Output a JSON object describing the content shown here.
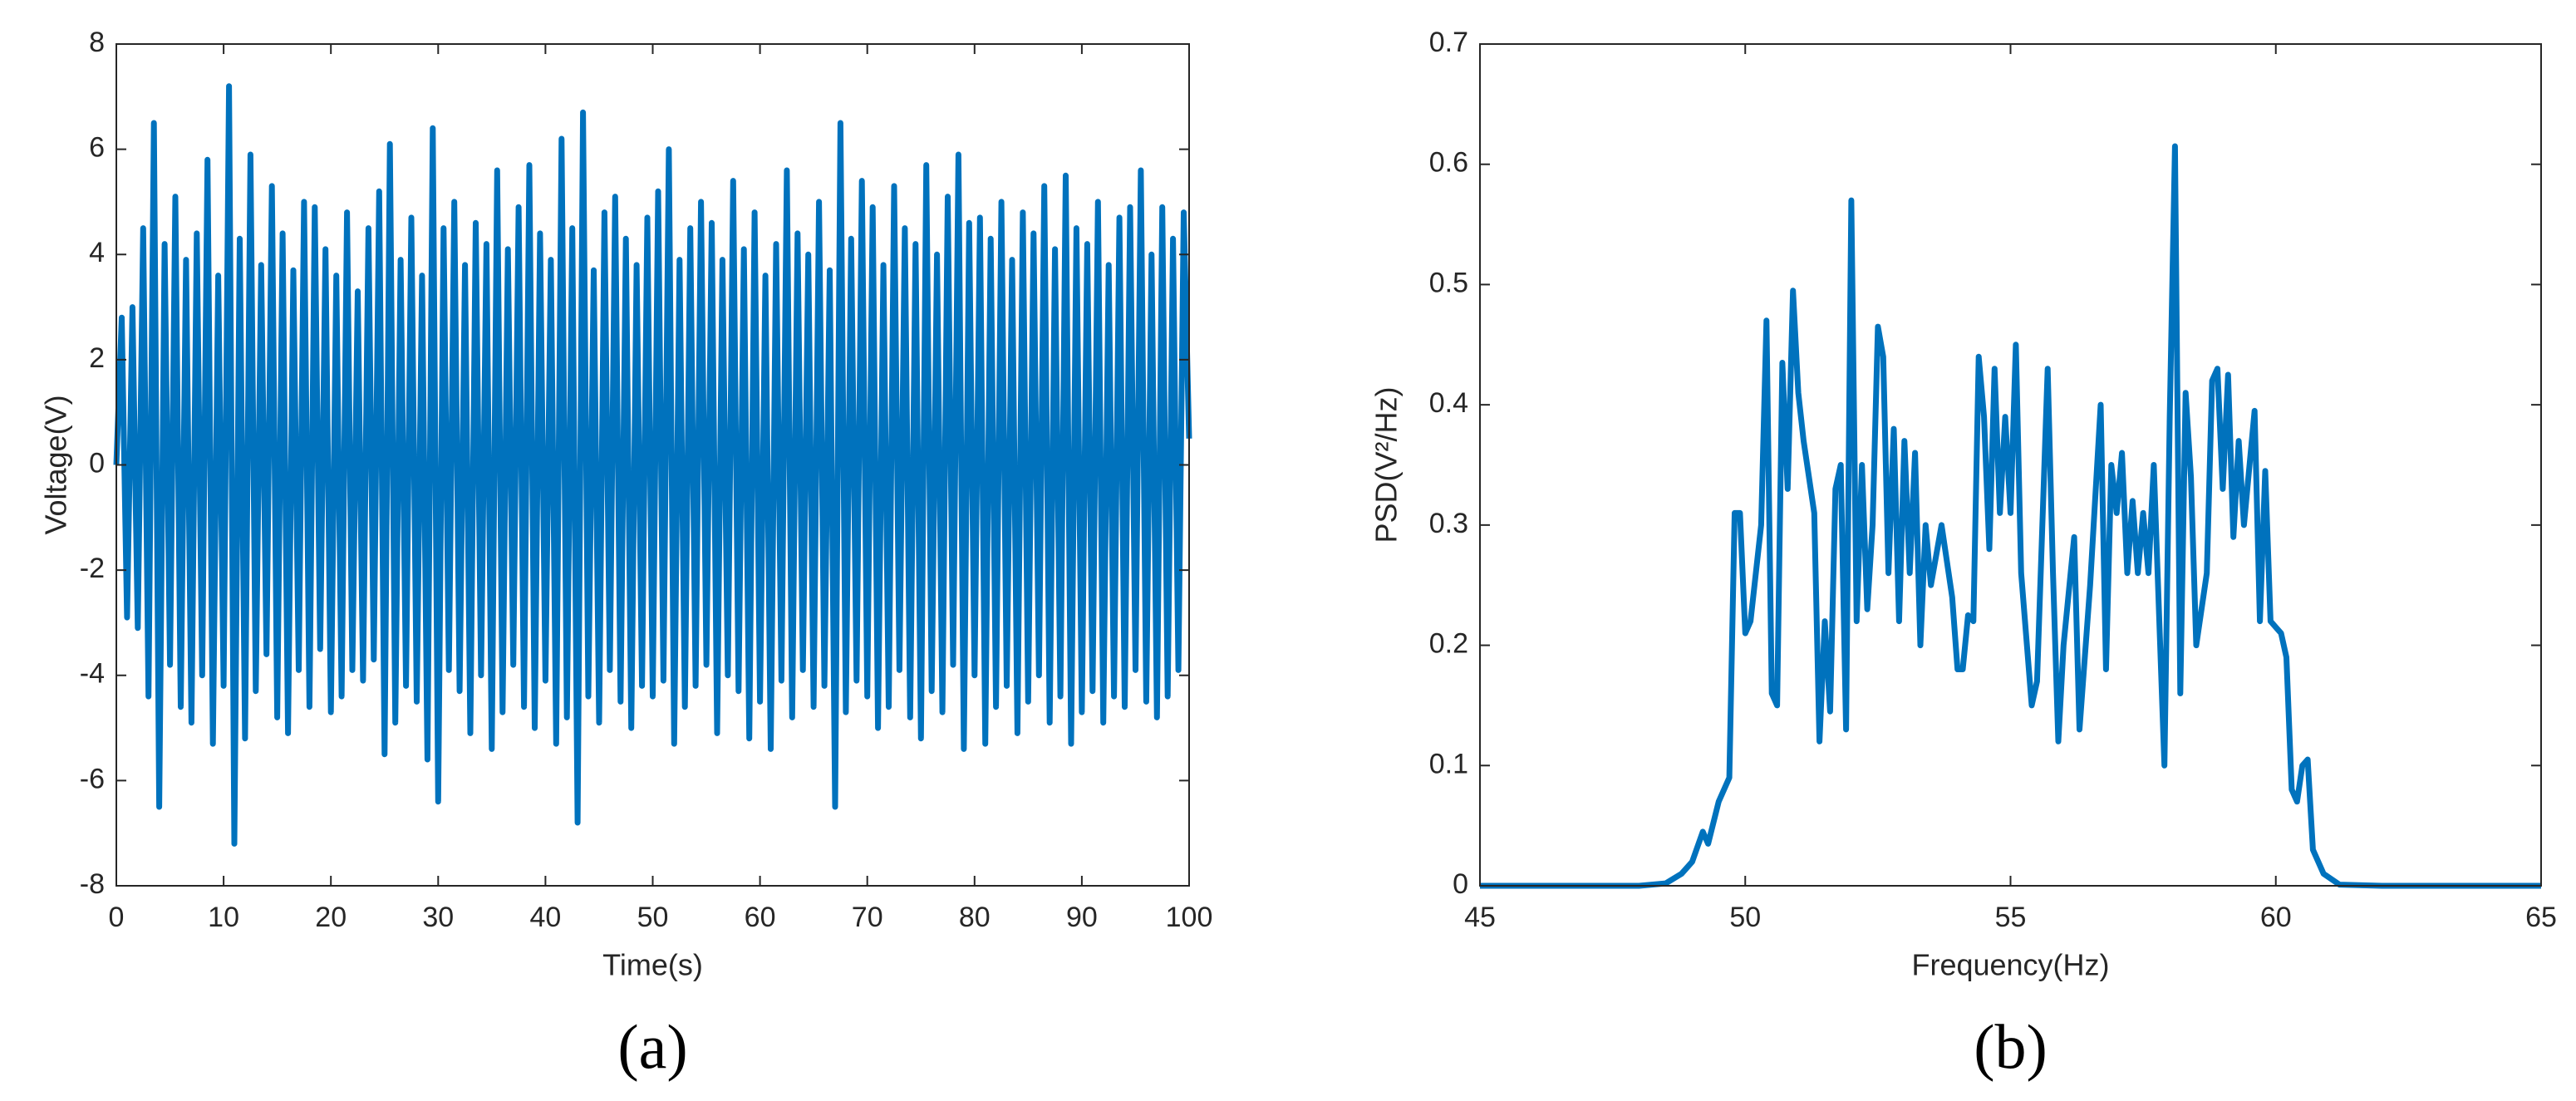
{
  "chart_data": [
    {
      "type": "line",
      "label": "(a)",
      "xlabel": "Time(s)",
      "ylabel": "Voltage(V)",
      "color": "#0072bd",
      "xlim": [
        0,
        100
      ],
      "xticks": [
        0,
        10,
        20,
        30,
        40,
        50,
        60,
        70,
        80,
        90,
        100
      ],
      "ylim": [
        -8,
        8
      ],
      "yticks": [
        -8,
        -6,
        -4,
        -2,
        0,
        2,
        4,
        6,
        8
      ],
      "x": [
        0,
        0.5,
        1,
        1.5,
        2,
        2.5,
        3,
        3.5,
        4,
        4.5,
        5,
        5.5,
        6,
        6.5,
        7,
        7.5,
        8,
        8.5,
        9,
        9.5,
        10,
        10.5,
        11,
        11.5,
        12,
        12.5,
        13,
        13.5,
        14,
        14.5,
        15,
        15.5,
        16,
        16.5,
        17,
        17.5,
        18,
        18.5,
        19,
        19.5,
        20,
        20.5,
        21,
        21.5,
        22,
        22.5,
        23,
        23.5,
        24,
        24.5,
        25,
        25.5,
        26,
        26.5,
        27,
        27.5,
        28,
        28.5,
        29,
        29.5,
        30,
        30.5,
        31,
        31.5,
        32,
        32.5,
        33,
        33.5,
        34,
        34.5,
        35,
        35.5,
        36,
        36.5,
        37,
        37.5,
        38,
        38.5,
        39,
        39.5,
        40,
        40.5,
        41,
        41.5,
        42,
        42.5,
        43,
        43.5,
        44,
        44.5,
        45,
        45.5,
        46,
        46.5,
        47,
        47.5,
        48,
        48.5,
        49,
        49.5,
        50,
        50.5,
        51,
        51.5,
        52,
        52.5,
        53,
        53.5,
        54,
        54.5,
        55,
        55.5,
        56,
        56.5,
        57,
        57.5,
        58,
        58.5,
        59,
        59.5,
        60,
        60.5,
        61,
        61.5,
        62,
        62.5,
        63,
        63.5,
        64,
        64.5,
        65,
        65.5,
        66,
        66.5,
        67,
        67.5,
        68,
        68.5,
        69,
        69.5,
        70,
        70.5,
        71,
        71.5,
        72,
        72.5,
        73,
        73.5,
        74,
        74.5,
        75,
        75.5,
        76,
        76.5,
        77,
        77.5,
        78,
        78.5,
        79,
        79.5,
        80,
        80.5,
        81,
        81.5,
        82,
        82.5,
        83,
        83.5,
        84,
        84.5,
        85,
        85.5,
        86,
        86.5,
        87,
        87.5,
        88,
        88.5,
        89,
        89.5,
        90,
        90.5,
        91,
        91.5,
        92,
        92.5,
        93,
        93.5,
        94,
        94.5,
        95,
        95.5,
        96,
        96.5,
        97,
        97.5,
        98,
        98.5,
        99,
        99.5,
        100
      ],
      "values": [
        0,
        2.8,
        -2.9,
        3.0,
        -3.1,
        4.5,
        -4.4,
        6.5,
        -6.5,
        4.2,
        -3.8,
        5.1,
        -4.6,
        3.9,
        -4.9,
        4.4,
        -4.0,
        5.8,
        -5.3,
        3.6,
        -4.2,
        7.2,
        -7.2,
        4.3,
        -5.2,
        5.9,
        -4.3,
        3.8,
        -3.6,
        5.3,
        -4.8,
        4.4,
        -5.1,
        3.7,
        -3.9,
        5.0,
        -4.6,
        4.9,
        -3.5,
        4.1,
        -4.7,
        3.6,
        -4.4,
        4.8,
        -3.9,
        3.3,
        -4.1,
        4.5,
        -3.7,
        5.2,
        -5.5,
        6.1,
        -4.9,
        3.9,
        -4.2,
        4.7,
        -4.5,
        3.6,
        -5.6,
        6.4,
        -6.4,
        4.5,
        -3.9,
        5.0,
        -4.3,
        3.8,
        -5.1,
        4.6,
        -4.0,
        4.2,
        -5.4,
        5.6,
        -4.7,
        4.1,
        -3.8,
        4.9,
        -4.6,
        5.7,
        -5.0,
        4.4,
        -4.1,
        3.9,
        -5.3,
        6.2,
        -4.8,
        4.5,
        -6.8,
        6.7,
        -4.4,
        3.7,
        -4.9,
        4.8,
        -3.9,
        5.1,
        -4.5,
        4.3,
        -5.0,
        3.8,
        -4.2,
        4.7,
        -4.4,
        5.2,
        -4.1,
        6.0,
        -5.3,
        3.9,
        -4.6,
        4.5,
        -4.2,
        5.0,
        -3.8,
        4.6,
        -5.1,
        3.9,
        -4.0,
        5.4,
        -4.3,
        4.1,
        -5.2,
        4.8,
        -4.5,
        3.6,
        -5.4,
        4.2,
        -4.1,
        5.6,
        -4.8,
        4.4,
        -3.9,
        4.0,
        -4.6,
        5.0,
        -4.2,
        3.7,
        -6.5,
        6.5,
        -4.7,
        4.3,
        -4.1,
        5.4,
        -4.4,
        4.9,
        -5.0,
        3.8,
        -4.6,
        5.3,
        -3.9,
        4.5,
        -4.8,
        4.2,
        -5.2,
        5.7,
        -4.3,
        4.0,
        -4.7,
        5.1,
        -3.8,
        5.9,
        -5.4,
        4.6,
        -4.0,
        4.7,
        -5.3,
        4.3,
        -4.6,
        5.0,
        -4.2,
        3.9,
        -5.1,
        4.8,
        -4.5,
        4.4,
        -4.0,
        5.3,
        -4.9,
        4.1,
        -4.4,
        5.5,
        -5.3,
        4.5,
        -4.7,
        4.2,
        -4.3,
        5.0,
        -4.9,
        3.8,
        -4.4,
        4.7,
        -4.6,
        4.9,
        -3.9,
        5.6,
        -4.5,
        4.0,
        -4.8,
        4.9,
        -4.4,
        4.3,
        -3.9,
        4.8,
        0.5
      ]
    },
    {
      "type": "line",
      "label": "(b)",
      "xlabel": "Frequency(Hz)",
      "ylabel": "PSD(V²/Hz)",
      "color": "#0072bd",
      "xlim": [
        45,
        65
      ],
      "xticks": [
        45,
        50,
        55,
        60,
        65
      ],
      "ylim": [
        0,
        0.7
      ],
      "yticks": [
        0,
        0.1,
        0.2,
        0.3,
        0.4,
        0.5,
        0.6,
        0.7
      ],
      "x": [
        45,
        46,
        47,
        48,
        48.5,
        48.8,
        49.0,
        49.2,
        49.3,
        49.5,
        49.7,
        49.8,
        49.9,
        50.0,
        50.1,
        50.3,
        50.4,
        50.5,
        50.6,
        50.7,
        50.8,
        50.9,
        51.0,
        51.1,
        51.3,
        51.4,
        51.5,
        51.6,
        51.7,
        51.8,
        51.9,
        52.0,
        52.1,
        52.2,
        52.3,
        52.4,
        52.5,
        52.6,
        52.7,
        52.8,
        52.9,
        53.0,
        53.1,
        53.2,
        53.3,
        53.4,
        53.5,
        53.7,
        53.9,
        54.0,
        54.1,
        54.2,
        54.3,
        54.4,
        54.5,
        54.6,
        54.7,
        54.8,
        54.9,
        55.0,
        55.1,
        55.2,
        55.4,
        55.5,
        55.7,
        55.8,
        55.9,
        56.0,
        56.2,
        56.3,
        56.5,
        56.7,
        56.8,
        56.9,
        57.0,
        57.1,
        57.2,
        57.3,
        57.4,
        57.5,
        57.6,
        57.7,
        57.9,
        58.0,
        58.1,
        58.2,
        58.3,
        58.4,
        58.5,
        58.7,
        58.8,
        58.9,
        59.0,
        59.1,
        59.2,
        59.3,
        59.4,
        59.6,
        59.7,
        59.8,
        59.9,
        60.0,
        60.1,
        60.2,
        60.3,
        60.4,
        60.5,
        60.6,
        60.7,
        60.9,
        61.2,
        62,
        65
      ],
      "values": [
        0,
        0,
        0,
        0,
        0.002,
        0.01,
        0.02,
        0.045,
        0.035,
        0.07,
        0.09,
        0.31,
        0.31,
        0.21,
        0.22,
        0.3,
        0.47,
        0.16,
        0.15,
        0.435,
        0.33,
        0.495,
        0.41,
        0.37,
        0.31,
        0.12,
        0.22,
        0.145,
        0.33,
        0.35,
        0.13,
        0.57,
        0.22,
        0.35,
        0.23,
        0.3,
        0.465,
        0.44,
        0.26,
        0.38,
        0.22,
        0.37,
        0.26,
        0.36,
        0.2,
        0.3,
        0.25,
        0.3,
        0.24,
        0.18,
        0.18,
        0.225,
        0.22,
        0.44,
        0.39,
        0.28,
        0.43,
        0.31,
        0.39,
        0.31,
        0.45,
        0.26,
        0.15,
        0.17,
        0.43,
        0.26,
        0.12,
        0.2,
        0.29,
        0.13,
        0.25,
        0.4,
        0.18,
        0.35,
        0.31,
        0.36,
        0.26,
        0.32,
        0.26,
        0.31,
        0.26,
        0.35,
        0.1,
        0.39,
        0.615,
        0.16,
        0.41,
        0.34,
        0.2,
        0.26,
        0.42,
        0.43,
        0.33,
        0.425,
        0.29,
        0.37,
        0.3,
        0.395,
        0.22,
        0.345,
        0.22,
        0.215,
        0.21,
        0.19,
        0.08,
        0.07,
        0.1,
        0.105,
        0.03,
        0.01,
        0.001,
        0,
        0
      ]
    }
  ]
}
